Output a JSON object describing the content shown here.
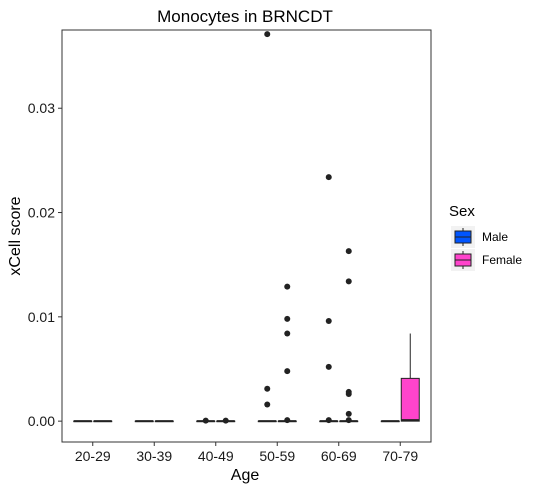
{
  "chart_data": {
    "type": "boxplot",
    "title": "Monocytes in BRNCDT",
    "xlabel": "Age",
    "ylabel": "xCell score",
    "categories": [
      "20-29",
      "30-39",
      "40-49",
      "50-59",
      "60-69",
      "70-79"
    ],
    "ylim": [
      -0.002,
      0.0375
    ],
    "yticks": [
      0.0,
      0.01,
      0.02,
      0.03
    ],
    "ytick_labels": [
      "0.00",
      "0.01",
      "0.02",
      "0.03"
    ],
    "grid": false,
    "legend": {
      "title": "Sex",
      "position": "right",
      "entries": [
        {
          "name": "Male",
          "color": "#0055ff"
        },
        {
          "name": "Female",
          "color": "#ff44cc"
        }
      ]
    },
    "series": [
      {
        "name": "Male",
        "color": "#0055ff",
        "boxes": [
          {
            "category": "20-29",
            "min": 0,
            "q1": 0,
            "median": 0,
            "q3": 0,
            "max": 0,
            "outliers": []
          },
          {
            "category": "30-39",
            "min": 0,
            "q1": 0,
            "median": 0,
            "q3": 0,
            "max": 0,
            "outliers": []
          },
          {
            "category": "40-49",
            "min": 0,
            "q1": 0,
            "median": 0,
            "q3": 0,
            "max": 0,
            "outliers": [
              5e-05
            ]
          },
          {
            "category": "50-59",
            "min": 0,
            "q1": 0,
            "median": 0,
            "q3": 0,
            "max": 0,
            "outliers": [
              0.0371,
              0.0031,
              0.0016
            ]
          },
          {
            "category": "60-69",
            "min": 0,
            "q1": 0,
            "median": 0,
            "q3": 0,
            "max": 0,
            "outliers": [
              0.0234,
              0.0096,
              0.0052,
              0.0001
            ]
          },
          {
            "category": "70-79",
            "min": 0,
            "q1": 0,
            "median": 0,
            "q3": 0,
            "max": 0,
            "outliers": []
          }
        ]
      },
      {
        "name": "Female",
        "color": "#ff44cc",
        "boxes": [
          {
            "category": "20-29",
            "min": 0,
            "q1": 0,
            "median": 0,
            "q3": 0,
            "max": 0,
            "outliers": []
          },
          {
            "category": "30-39",
            "min": 0,
            "q1": 0,
            "median": 0,
            "q3": 0,
            "max": 0,
            "outliers": []
          },
          {
            "category": "40-49",
            "min": 0,
            "q1": 0,
            "median": 0,
            "q3": 0,
            "max": 0,
            "outliers": [
              5e-05
            ]
          },
          {
            "category": "50-59",
            "min": 0,
            "q1": 0,
            "median": 0,
            "q3": 0,
            "max": 0,
            "outliers": [
              0.0129,
              0.0098,
              0.0084,
              0.0048,
              0.0001
            ]
          },
          {
            "category": "60-69",
            "min": 0,
            "q1": 0,
            "median": 0,
            "q3": 0,
            "max": 0,
            "outliers": [
              0.0163,
              0.0134,
              0.0028,
              0.0026,
              0.0007,
              0.0001
            ]
          },
          {
            "category": "70-79",
            "min": 0,
            "q1": 0,
            "median": 0.0001,
            "q3": 0.0041,
            "max": 0.0084,
            "outliers": []
          }
        ]
      }
    ]
  }
}
